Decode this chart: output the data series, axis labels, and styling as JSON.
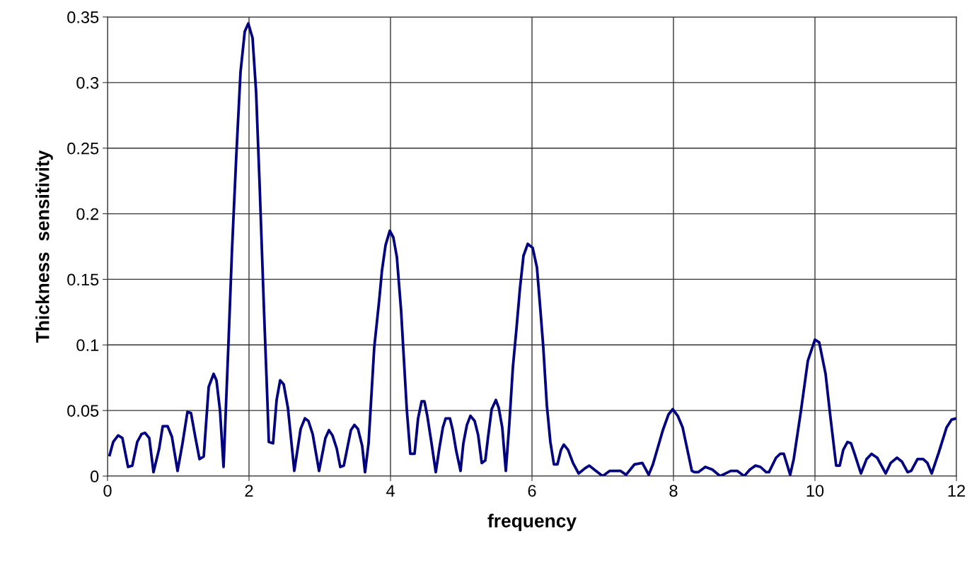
{
  "chart_data": {
    "type": "line",
    "xlabel": "frequency",
    "ylabel": "Thickness  sensitivity",
    "xlim": [
      0,
      12
    ],
    "xticks": [
      0,
      2,
      4,
      6,
      8,
      10,
      12
    ],
    "ylim": [
      0,
      0.35
    ],
    "yticks": [
      0,
      0.05,
      0.1,
      0.15,
      0.2,
      0.25,
      0.3,
      0.35
    ],
    "grid": true,
    "marker": "none",
    "line_style": "solid",
    "series": [
      {
        "color": "#000080",
        "x": [
          0.03,
          0.08,
          0.15,
          0.21,
          0.29,
          0.35,
          0.42,
          0.48,
          0.53,
          0.59,
          0.65,
          0.73,
          0.78,
          0.85,
          0.91,
          0.99,
          1.06,
          1.13,
          1.18,
          1.24,
          1.3,
          1.36,
          1.43,
          1.5,
          1.54,
          1.59,
          1.64,
          1.71,
          1.76,
          1.82,
          1.88,
          1.94,
          1.99,
          2.05,
          2.1,
          2.15,
          2.21,
          2.26,
          2.28,
          2.34,
          2.39,
          2.44,
          2.49,
          2.55,
          2.64,
          2.73,
          2.79,
          2.84,
          2.9,
          2.99,
          3.08,
          3.13,
          3.18,
          3.24,
          3.29,
          3.34,
          3.44,
          3.49,
          3.54,
          3.6,
          3.64,
          3.69,
          3.77,
          3.84,
          3.88,
          3.93,
          3.99,
          4.04,
          4.09,
          4.15,
          4.23,
          4.28,
          4.34,
          4.39,
          4.44,
          4.48,
          4.52,
          4.58,
          4.64,
          4.69,
          4.74,
          4.78,
          4.84,
          4.88,
          4.93,
          4.99,
          5.03,
          5.08,
          5.13,
          5.19,
          5.24,
          5.29,
          5.34,
          5.38,
          5.43,
          5.49,
          5.53,
          5.58,
          5.63,
          5.68,
          5.73,
          5.78,
          5.83,
          5.88,
          5.94,
          6.01,
          6.07,
          6.12,
          6.16,
          6.21,
          6.26,
          6.31,
          6.36,
          6.41,
          6.45,
          6.51,
          6.58,
          6.66,
          6.75,
          6.81,
          6.88,
          7.0,
          7.1,
          7.25,
          7.33,
          7.45,
          7.56,
          7.65,
          7.71,
          7.85,
          7.93,
          7.99,
          8.06,
          8.13,
          8.26,
          8.3,
          8.35,
          8.45,
          8.55,
          8.66,
          8.81,
          8.9,
          9.0,
          9.08,
          9.16,
          9.23,
          9.31,
          9.35,
          9.45,
          9.51,
          9.56,
          9.65,
          9.7,
          9.8,
          9.9,
          10.0,
          10.06,
          10.15,
          10.21,
          10.3,
          10.35,
          10.4,
          10.46,
          10.51,
          10.56,
          10.65,
          10.73,
          10.8,
          10.88,
          11.0,
          11.07,
          11.16,
          11.23,
          11.31,
          11.36,
          11.45,
          11.53,
          11.59,
          11.65,
          11.75,
          11.86,
          11.93,
          12.0
        ],
        "values": [
          0.016,
          0.026,
          0.031,
          0.029,
          0.007,
          0.008,
          0.026,
          0.032,
          0.033,
          0.029,
          0.003,
          0.021,
          0.038,
          0.038,
          0.03,
          0.004,
          0.025,
          0.049,
          0.048,
          0.03,
          0.013,
          0.015,
          0.068,
          0.078,
          0.073,
          0.05,
          0.007,
          0.102,
          0.173,
          0.244,
          0.308,
          0.339,
          0.345,
          0.334,
          0.293,
          0.222,
          0.129,
          0.057,
          0.026,
          0.025,
          0.058,
          0.073,
          0.07,
          0.052,
          0.004,
          0.036,
          0.044,
          0.042,
          0.032,
          0.004,
          0.029,
          0.035,
          0.031,
          0.021,
          0.007,
          0.008,
          0.035,
          0.039,
          0.036,
          0.023,
          0.003,
          0.025,
          0.098,
          0.134,
          0.157,
          0.176,
          0.187,
          0.182,
          0.167,
          0.126,
          0.051,
          0.017,
          0.017,
          0.044,
          0.057,
          0.057,
          0.046,
          0.025,
          0.003,
          0.021,
          0.037,
          0.044,
          0.044,
          0.035,
          0.019,
          0.004,
          0.025,
          0.039,
          0.046,
          0.042,
          0.031,
          0.01,
          0.012,
          0.03,
          0.051,
          0.058,
          0.052,
          0.037,
          0.004,
          0.04,
          0.083,
          0.112,
          0.143,
          0.168,
          0.177,
          0.174,
          0.159,
          0.126,
          0.098,
          0.054,
          0.026,
          0.009,
          0.009,
          0.02,
          0.024,
          0.02,
          0.01,
          0.002,
          0.006,
          0.008,
          0.005,
          0.0,
          0.004,
          0.004,
          0.001,
          0.009,
          0.01,
          0.001,
          0.009,
          0.035,
          0.047,
          0.051,
          0.046,
          0.037,
          0.004,
          0.003,
          0.003,
          0.007,
          0.005,
          0.0,
          0.004,
          0.004,
          0.0,
          0.005,
          0.008,
          0.007,
          0.003,
          0.003,
          0.014,
          0.017,
          0.017,
          0.001,
          0.013,
          0.049,
          0.088,
          0.104,
          0.102,
          0.078,
          0.049,
          0.008,
          0.008,
          0.02,
          0.026,
          0.025,
          0.017,
          0.002,
          0.013,
          0.017,
          0.014,
          0.002,
          0.01,
          0.014,
          0.011,
          0.003,
          0.004,
          0.013,
          0.013,
          0.01,
          0.002,
          0.018,
          0.037,
          0.043,
          0.044
        ]
      }
    ]
  }
}
